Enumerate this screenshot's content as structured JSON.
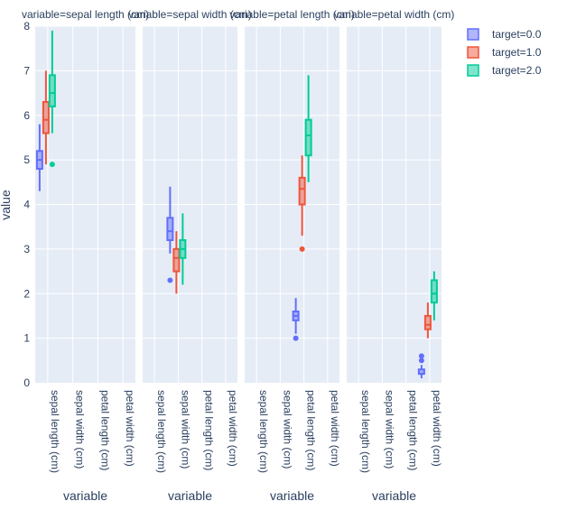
{
  "chart_data": {
    "type": "box",
    "facet_titles": [
      "variable=sepal length (cm)",
      "variable=sepal width (cm)",
      "variable=petal length (cm)",
      "variable=petal width (cm)"
    ],
    "categories": [
      "sepal length (cm)",
      "sepal width (cm)",
      "petal length (cm)",
      "petal width (cm)"
    ],
    "xlabel": "variable",
    "ylabel": "value",
    "ylim": [
      0,
      8
    ],
    "yticks": [
      0,
      1,
      2,
      3,
      4,
      5,
      6,
      7,
      8
    ],
    "legend_position": "top-right",
    "series": [
      {
        "name": "target=0.0",
        "color": "#636efa",
        "boxes": [
          {
            "category": "sepal length (cm)",
            "min": 4.3,
            "q1": 4.8,
            "median": 5.0,
            "q3": 5.2,
            "max": 5.8,
            "outliers": []
          },
          {
            "category": "sepal width (cm)",
            "min": 2.9,
            "q1": 3.2,
            "median": 3.4,
            "q3": 3.7,
            "max": 4.4,
            "outliers": [
              2.3
            ]
          },
          {
            "category": "petal length (cm)",
            "min": 1.1,
            "q1": 1.4,
            "median": 1.5,
            "q3": 1.6,
            "max": 1.9,
            "outliers": [
              1.0
            ]
          },
          {
            "category": "petal width (cm)",
            "min": 0.1,
            "q1": 0.2,
            "median": 0.2,
            "q3": 0.3,
            "max": 0.4,
            "outliers": [
              0.5,
              0.6
            ]
          }
        ]
      },
      {
        "name": "target=1.0",
        "color": "#ef553b",
        "boxes": [
          {
            "category": "sepal length (cm)",
            "min": 4.9,
            "q1": 5.6,
            "median": 5.9,
            "q3": 6.3,
            "max": 7.0,
            "outliers": []
          },
          {
            "category": "sepal width (cm)",
            "min": 2.0,
            "q1": 2.5,
            "median": 2.8,
            "q3": 3.0,
            "max": 3.4,
            "outliers": []
          },
          {
            "category": "petal length (cm)",
            "min": 3.3,
            "q1": 4.0,
            "median": 4.35,
            "q3": 4.6,
            "max": 5.1,
            "outliers": [
              3.0
            ]
          },
          {
            "category": "petal width (cm)",
            "min": 1.0,
            "q1": 1.2,
            "median": 1.3,
            "q3": 1.5,
            "max": 1.8,
            "outliers": []
          }
        ]
      },
      {
        "name": "target=2.0",
        "color": "#00cc96",
        "boxes": [
          {
            "category": "sepal length (cm)",
            "min": 5.6,
            "q1": 6.2,
            "median": 6.5,
            "q3": 6.9,
            "max": 7.9,
            "outliers": [
              4.9
            ]
          },
          {
            "category": "sepal width (cm)",
            "min": 2.2,
            "q1": 2.8,
            "median": 3.0,
            "q3": 3.2,
            "max": 3.8,
            "outliers": []
          },
          {
            "category": "petal length (cm)",
            "min": 4.5,
            "q1": 5.1,
            "median": 5.55,
            "q3": 5.9,
            "max": 6.9,
            "outliers": []
          },
          {
            "category": "petal width (cm)",
            "min": 1.4,
            "q1": 1.8,
            "median": 2.0,
            "q3": 2.3,
            "max": 2.5,
            "outliers": []
          }
        ]
      }
    ]
  }
}
